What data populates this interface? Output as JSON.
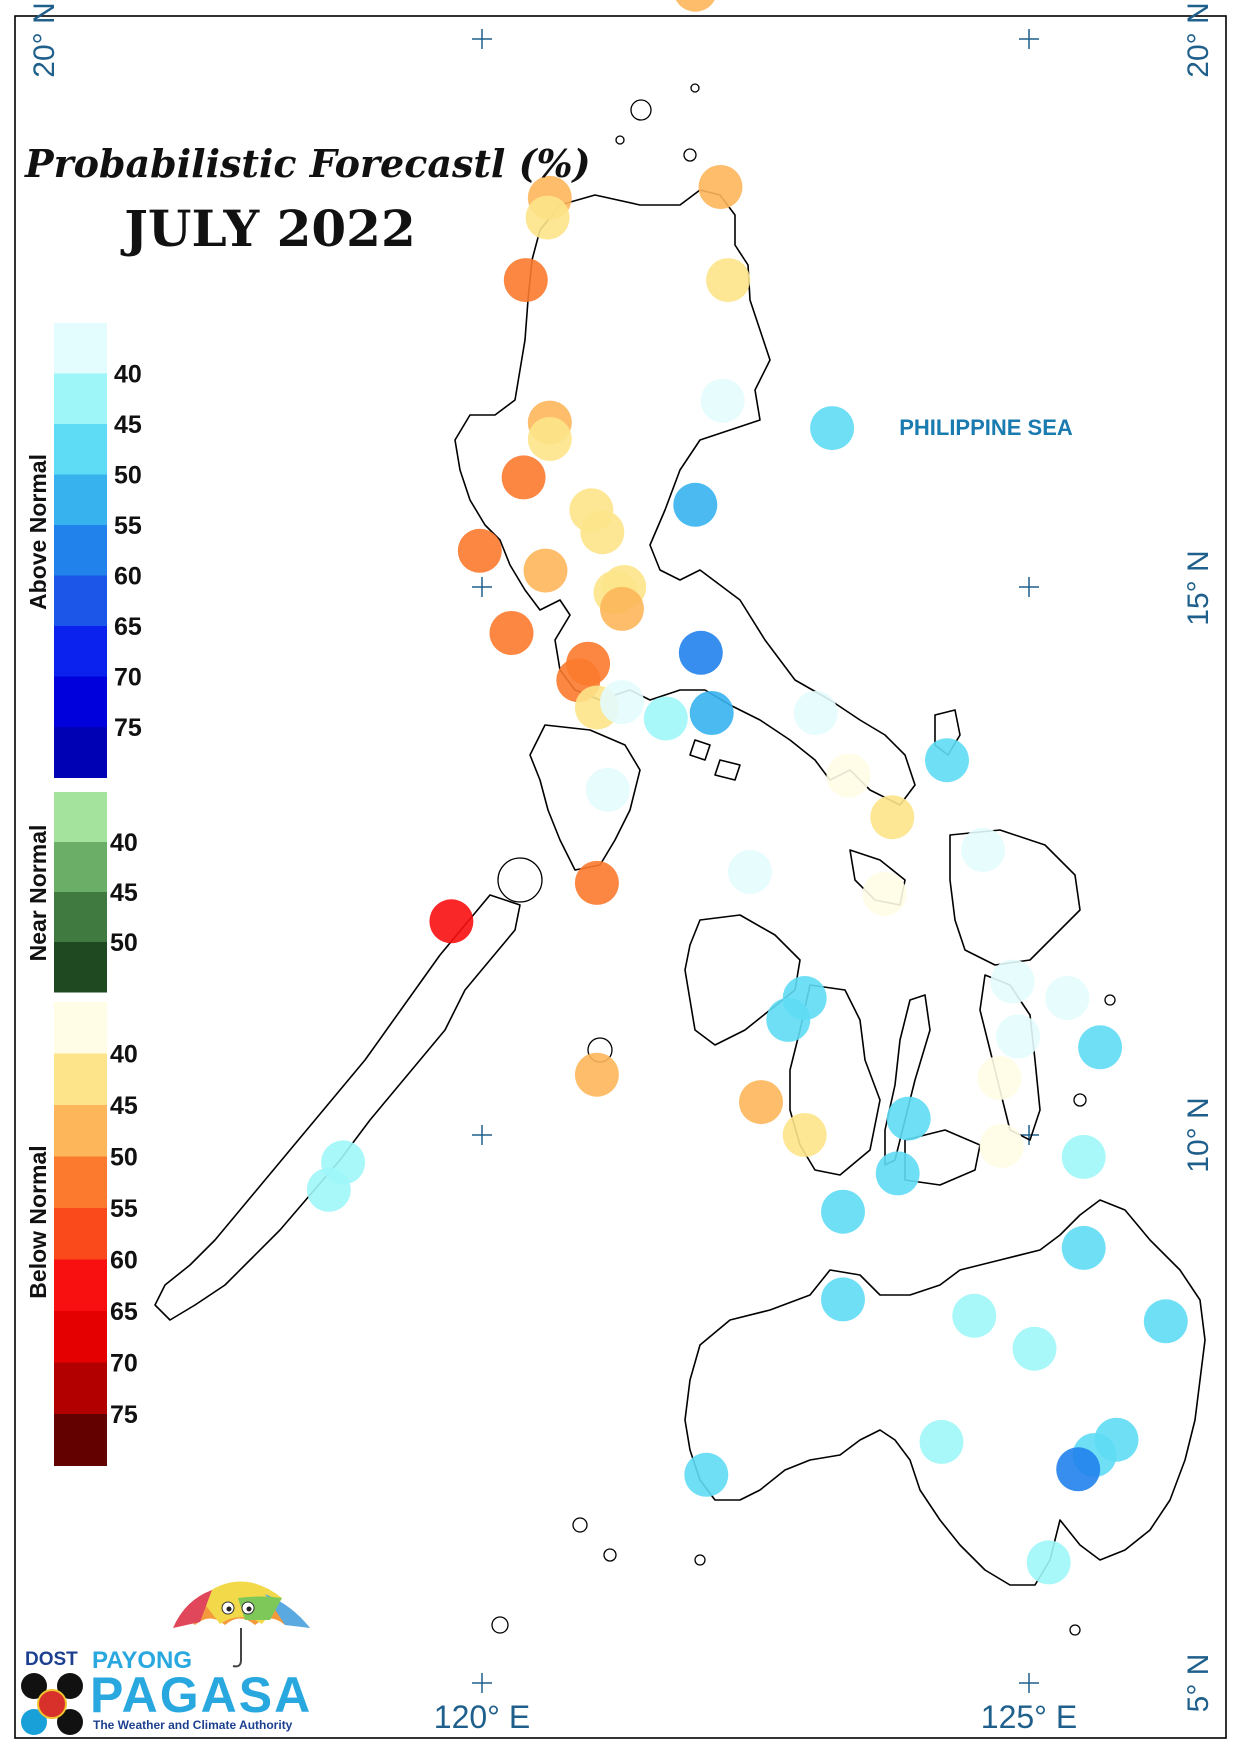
{
  "title": "Probabilistic Forecastl (%)",
  "subtitle": "JULY 2022",
  "sea_label": "PHILIPPINE SEA",
  "lat_labels": [
    "20° N",
    "15° N",
    "10° N",
    "5° N"
  ],
  "lon_labels": [
    "120° E",
    "125° E"
  ],
  "legend": {
    "above": {
      "title": "Above Normal",
      "ticks": [
        "40",
        "45",
        "50",
        "55",
        "60",
        "65",
        "70",
        "75"
      ],
      "colors": [
        "#e3fcfd",
        "#9ef6f8",
        "#5fdcf5",
        "#37b2ef",
        "#2182ec",
        "#1c56e8",
        "#0b22ee",
        "#0000dc",
        "#0000b4"
      ]
    },
    "near": {
      "title": "Near Normal",
      "ticks": [
        "40",
        "45",
        "50"
      ],
      "colors": [
        "#a4e39d",
        "#6bae68",
        "#417a41",
        "#1f4a21"
      ]
    },
    "below": {
      "title": "Below Normal",
      "ticks": [
        "40",
        "45",
        "50",
        "55",
        "60",
        "65",
        "70",
        "75"
      ],
      "colors": [
        "#fffde5",
        "#fde48a",
        "#fdb65a",
        "#fb7a2e",
        "#fa4a1c",
        "#f80f0f",
        "#e40000",
        "#b20000",
        "#630000"
      ]
    }
  },
  "colors": {
    "above_40": "#e3fcfd",
    "above_45": "#9ef6f8",
    "above_50": "#5fdcf5",
    "above_55": "#37b2ef",
    "above_60": "#2182ec",
    "below_40": "#fffde5",
    "below_45": "#fde48a",
    "below_50": "#fdb65a",
    "below_55": "#fb7a2e",
    "below_60": "#fa4a1c",
    "below_65": "#f80f0f"
  },
  "logo": {
    "dost": "DOST",
    "payong": "PAYONG",
    "pagasa": "PAGASA",
    "tagline": "The Weather and Climate Authority"
  },
  "stations": [
    {
      "lon": 121.95,
      "lat": 20.45,
      "category": "below_50"
    },
    {
      "lon": 122.18,
      "lat": 18.65,
      "category": "below_50"
    },
    {
      "lon": 120.62,
      "lat": 18.55,
      "category": "below_50"
    },
    {
      "lon": 120.6,
      "lat": 18.37,
      "category": "below_45"
    },
    {
      "lon": 120.4,
      "lat": 17.8,
      "category": "below_55"
    },
    {
      "lon": 122.25,
      "lat": 17.8,
      "category": "below_45"
    },
    {
      "lon": 122.2,
      "lat": 16.7,
      "category": "above_40"
    },
    {
      "lon": 120.62,
      "lat": 16.5,
      "category": "below_50"
    },
    {
      "lon": 120.62,
      "lat": 16.35,
      "category": "below_45"
    },
    {
      "lon": 123.2,
      "lat": 16.45,
      "category": "above_50"
    },
    {
      "lon": 120.38,
      "lat": 16.0,
      "category": "below_55"
    },
    {
      "lon": 121.95,
      "lat": 15.75,
      "category": "above_55"
    },
    {
      "lon": 121.0,
      "lat": 15.7,
      "category": "below_45"
    },
    {
      "lon": 121.1,
      "lat": 15.5,
      "category": "below_45"
    },
    {
      "lon": 119.98,
      "lat": 15.33,
      "category": "below_55"
    },
    {
      "lon": 120.58,
      "lat": 15.15,
      "category": "below_50"
    },
    {
      "lon": 121.3,
      "lat": 15.0,
      "category": "below_45"
    },
    {
      "lon": 121.22,
      "lat": 14.95,
      "category": "below_45"
    },
    {
      "lon": 121.28,
      "lat": 14.8,
      "category": "below_50"
    },
    {
      "lon": 120.27,
      "lat": 14.58,
      "category": "below_55"
    },
    {
      "lon": 122.0,
      "lat": 14.4,
      "category": "above_60"
    },
    {
      "lon": 120.97,
      "lat": 14.3,
      "category": "below_55"
    },
    {
      "lon": 120.88,
      "lat": 14.15,
      "category": "below_55"
    },
    {
      "lon": 121.05,
      "lat": 13.9,
      "category": "below_45"
    },
    {
      "lon": 121.28,
      "lat": 13.95,
      "category": "above_40"
    },
    {
      "lon": 121.68,
      "lat": 13.8,
      "category": "above_45"
    },
    {
      "lon": 122.1,
      "lat": 13.85,
      "category": "above_55"
    },
    {
      "lon": 123.05,
      "lat": 13.85,
      "category": "above_40"
    },
    {
      "lon": 124.25,
      "lat": 13.42,
      "category": "above_50"
    },
    {
      "lon": 123.35,
      "lat": 13.28,
      "category": "below_40"
    },
    {
      "lon": 121.15,
      "lat": 13.15,
      "category": "above_40"
    },
    {
      "lon": 123.75,
      "lat": 12.9,
      "category": "below_45"
    },
    {
      "lon": 122.45,
      "lat": 12.4,
      "category": "above_40"
    },
    {
      "lon": 124.58,
      "lat": 12.6,
      "category": "above_40"
    },
    {
      "lon": 121.05,
      "lat": 12.3,
      "category": "below_55"
    },
    {
      "lon": 123.68,
      "lat": 12.2,
      "category": "below_40"
    },
    {
      "lon": 119.72,
      "lat": 11.95,
      "category": "below_65"
    },
    {
      "lon": 124.85,
      "lat": 11.4,
      "category": "above_40"
    },
    {
      "lon": 125.35,
      "lat": 11.25,
      "category": "above_40"
    },
    {
      "lon": 122.95,
      "lat": 11.25,
      "category": "above_50"
    },
    {
      "lon": 122.8,
      "lat": 11.05,
      "category": "above_50"
    },
    {
      "lon": 124.9,
      "lat": 10.9,
      "category": "above_40"
    },
    {
      "lon": 125.65,
      "lat": 10.8,
      "category": "above_50"
    },
    {
      "lon": 121.05,
      "lat": 10.55,
      "category": "below_50"
    },
    {
      "lon": 124.73,
      "lat": 10.52,
      "category": "below_40"
    },
    {
      "lon": 122.55,
      "lat": 10.3,
      "category": "below_50"
    },
    {
      "lon": 122.95,
      "lat": 10.0,
      "category": "below_45"
    },
    {
      "lon": 123.9,
      "lat": 10.15,
      "category": "above_50"
    },
    {
      "lon": 124.75,
      "lat": 9.9,
      "category": "below_40"
    },
    {
      "lon": 118.73,
      "lat": 9.75,
      "category": "above_45"
    },
    {
      "lon": 118.6,
      "lat": 9.5,
      "category": "above_45"
    },
    {
      "lon": 125.5,
      "lat": 9.8,
      "category": "above_45"
    },
    {
      "lon": 123.8,
      "lat": 9.65,
      "category": "above_50"
    },
    {
      "lon": 123.3,
      "lat": 9.3,
      "category": "above_50"
    },
    {
      "lon": 125.5,
      "lat": 8.97,
      "category": "above_50"
    },
    {
      "lon": 123.3,
      "lat": 8.5,
      "category": "above_50"
    },
    {
      "lon": 124.5,
      "lat": 8.35,
      "category": "above_45"
    },
    {
      "lon": 126.25,
      "lat": 8.3,
      "category": "above_50"
    },
    {
      "lon": 125.05,
      "lat": 8.05,
      "category": "above_45"
    },
    {
      "lon": 125.8,
      "lat": 7.22,
      "category": "above_50"
    },
    {
      "lon": 125.6,
      "lat": 7.08,
      "category": "above_50"
    },
    {
      "lon": 124.2,
      "lat": 7.2,
      "category": "above_45"
    },
    {
      "lon": 125.45,
      "lat": 6.95,
      "category": "above_60"
    },
    {
      "lon": 122.05,
      "lat": 6.9,
      "category": "above_50"
    },
    {
      "lon": 125.18,
      "lat": 6.1,
      "category": "above_45"
    }
  ]
}
